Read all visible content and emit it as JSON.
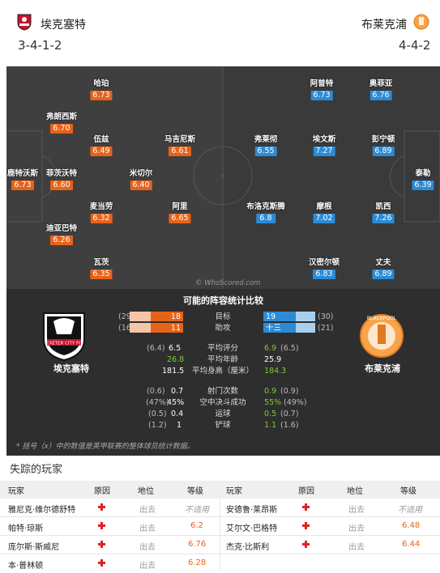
{
  "home": {
    "name": "埃克塞特",
    "formation": "3-4-1-2",
    "players": [
      {
        "name": "哈珀",
        "rating": "6.73"
      },
      {
        "name": "弗朗西斯",
        "rating": "6.70"
      },
      {
        "name": "伍兹",
        "rating": "6.49"
      },
      {
        "name": "马吉尼斯",
        "rating": "6.61"
      },
      {
        "name": "鹿特沃斯",
        "rating": "6.73"
      },
      {
        "name": "菲茨沃特",
        "rating": "6.60"
      },
      {
        "name": "米切尔",
        "rating": "6.40"
      },
      {
        "name": "麦当劳",
        "rating": "6.32"
      },
      {
        "name": "阿里",
        "rating": "6.65"
      },
      {
        "name": "迪亚巴特",
        "rating": "6.26"
      },
      {
        "name": "瓦茨",
        "rating": "6.35"
      }
    ]
  },
  "away": {
    "name": "布莱克浦",
    "formation": "4-4-2",
    "players": [
      {
        "name": "阿普特",
        "rating": "6.73"
      },
      {
        "name": "奥菲亚",
        "rating": "6.76"
      },
      {
        "name": "弗莱彻",
        "rating": "6.55"
      },
      {
        "name": "埃文斯",
        "rating": "7.27"
      },
      {
        "name": "彭宁顿",
        "rating": "6.89"
      },
      {
        "name": "泰勒",
        "rating": "6.39"
      },
      {
        "name": "布洛克斯腾",
        "rating": "6.8"
      },
      {
        "name": "摩根",
        "rating": "7.02"
      },
      {
        "name": "凯西",
        "rating": "7.26"
      },
      {
        "name": "汉密尔顿",
        "rating": "6.83"
      },
      {
        "name": "丈夫",
        "rating": "6.89"
      }
    ]
  },
  "watermark": "© WhoScored.com",
  "stats": {
    "title": "可能的阵容统计比较",
    "bars": [
      {
        "label": "目标",
        "home": "18",
        "home_paren": "(29)",
        "away": "19",
        "away_paren": "(30)",
        "home_frac": 0.6,
        "away_frac": 0.6
      },
      {
        "label": "助攻",
        "home": "11",
        "home_paren": "(16)",
        "away": "十三",
        "away_paren": "(21)",
        "home_frac": 0.6,
        "away_frac": 0.6
      }
    ],
    "rows1": [
      {
        "label": "平均评分",
        "home": "6.5",
        "home_paren": "(6.4)",
        "away": "6.9",
        "away_paren": "(6.5)",
        "hl": "away"
      },
      {
        "label": "平均年龄",
        "home": "26.8",
        "home_paren": "",
        "away": "25.9",
        "away_paren": "",
        "hl": "home"
      },
      {
        "label": "平均身高（厘米）",
        "home": "181.5",
        "home_paren": "",
        "away": "184.3",
        "away_paren": "",
        "hl": "away"
      }
    ],
    "rows2": [
      {
        "label": "射门次数",
        "home": "0.7",
        "home_paren": "(0.6)",
        "away": "0.9",
        "away_paren": "(0.9)",
        "hl": "away"
      },
      {
        "label": "空中决斗成功",
        "home": "45%",
        "home_paren": "(47%)",
        "away": "55%",
        "away_paren": "(49%)",
        "hl": "away"
      },
      {
        "label": "运球",
        "home": "0.4",
        "home_paren": "(0.5)",
        "away": "0.5",
        "away_paren": "(0.7)",
        "hl": "away"
      },
      {
        "label": "铲球",
        "home": "1",
        "home_paren": "(1.2)",
        "away": "1.1",
        "away_paren": "(1.6)",
        "hl": "away"
      }
    ],
    "footnote": "* 括号（x）中的数值是英甲联赛的整体球员统计数据。"
  },
  "missing": {
    "title": "失踪的玩家",
    "headers": {
      "player": "玩家",
      "reason": "原因",
      "status": "地位",
      "grade": "等级"
    },
    "home": [
      {
        "name": "雅尼克·维尔德舒特",
        "status": "出去",
        "grade": "不适用",
        "na": true
      },
      {
        "name": "帕特·琼斯",
        "status": "出去",
        "grade": "6.2",
        "na": false
      },
      {
        "name": "庞尔斯·斯威尼",
        "status": "出去",
        "grade": "6.76",
        "na": false
      },
      {
        "name": "本·普林顿",
        "status": "出去",
        "grade": "6.28",
        "na": false
      }
    ],
    "away": [
      {
        "name": "安德鲁·莱昂斯",
        "status": "出去",
        "grade": "不适用",
        "na": true
      },
      {
        "name": "艾尔文·巴格特",
        "status": "出去",
        "grade": "6.48",
        "na": false
      },
      {
        "name": "杰克·比斯利",
        "status": "出去",
        "grade": "6.44",
        "na": false
      }
    ]
  },
  "colors": {
    "home": "#e8631a",
    "away": "#2b8bd6",
    "highlight": "#7ec93a"
  }
}
